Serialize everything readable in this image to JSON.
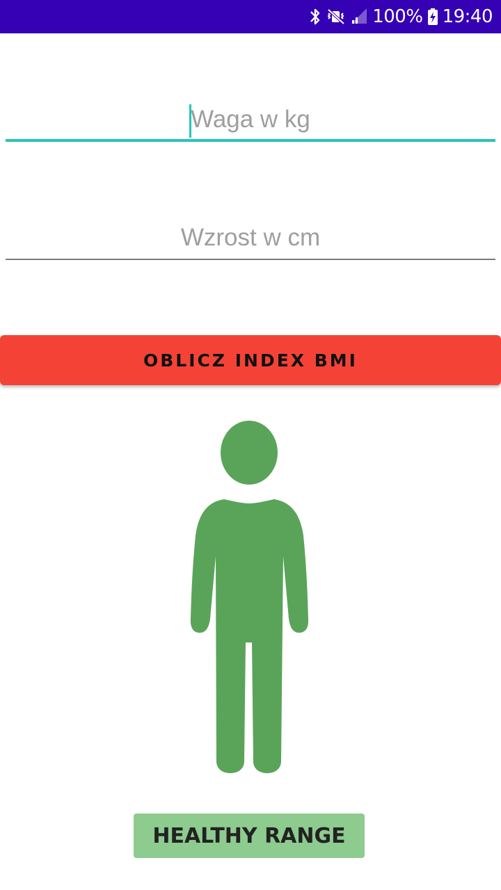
{
  "status_bar": {
    "battery": "100%",
    "time": "19:40",
    "icons": [
      "bluetooth-icon",
      "mute-vibrate-icon",
      "signal-icon",
      "battery-charging-icon"
    ],
    "background": "#3600b5"
  },
  "form": {
    "weight": {
      "placeholder": "Waga w kg",
      "value": "",
      "focused": true
    },
    "height": {
      "placeholder": "Wzrost w cm",
      "value": "",
      "focused": false
    },
    "calculate_button": {
      "label": "OBLICZ INDEX BMI",
      "color": "#f44336"
    }
  },
  "result": {
    "figure_icon": "person-figure-icon",
    "figure_color": "#5aa45a",
    "badge_label": "HEALTHY RANGE",
    "badge_color": "#8dcb8f"
  },
  "colors": {
    "accent": "#26c6b6"
  }
}
